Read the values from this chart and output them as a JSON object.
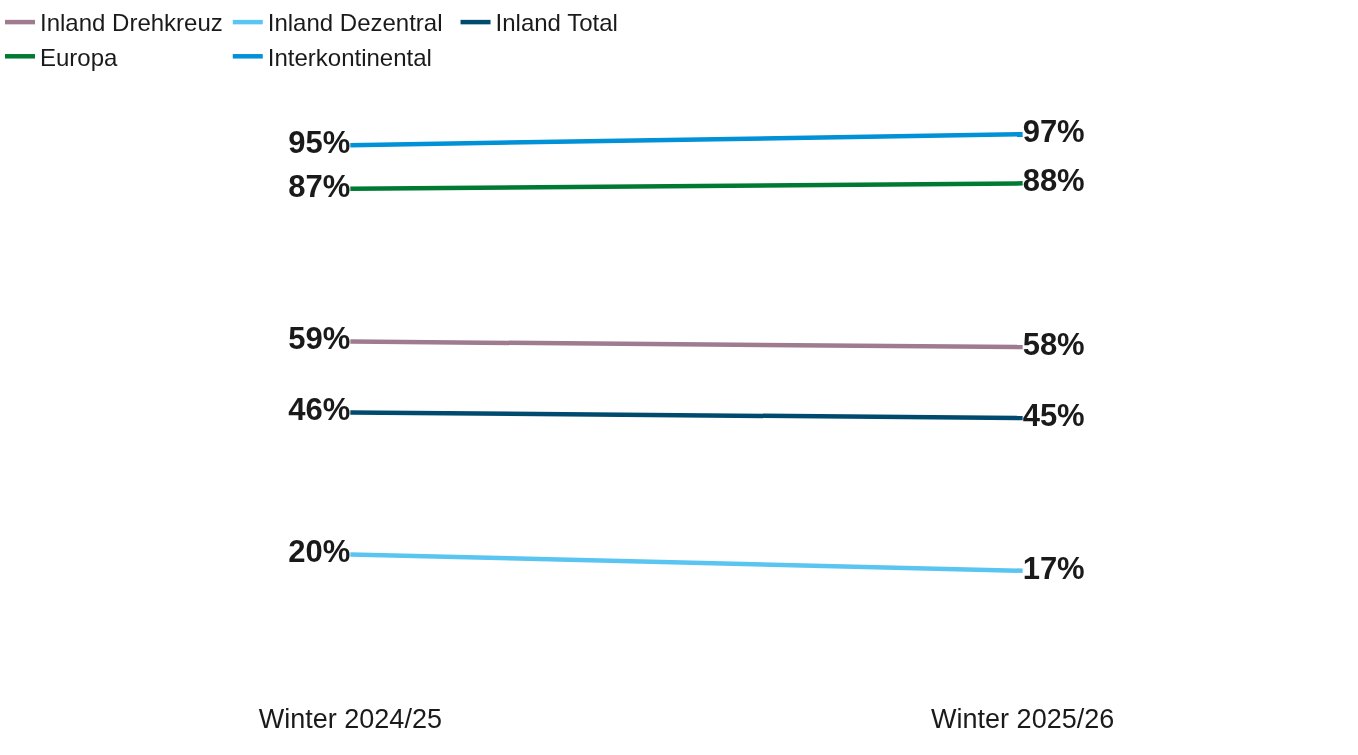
{
  "chart_data": {
    "type": "line",
    "categories": [
      "Winter 2024/25",
      "Winter 2025/26"
    ],
    "series": [
      {
        "name": "Inland Drehkreuz",
        "color": "#9e7b8f",
        "values": [
          59,
          58
        ],
        "value_labels": [
          "59%",
          "58%"
        ]
      },
      {
        "name": "Inland Dezentral",
        "color": "#5bc5f2",
        "values": [
          20,
          17
        ],
        "value_labels": [
          "20%",
          "17%"
        ]
      },
      {
        "name": "Inland Total",
        "color": "#004a6e",
        "values": [
          46,
          45
        ],
        "value_labels": [
          "46%",
          "45%"
        ]
      },
      {
        "name": "Europa",
        "color": "#007a33",
        "values": [
          87,
          88
        ],
        "value_labels": [
          "87%",
          "88%"
        ]
      },
      {
        "name": "Interkontinental",
        "color": "#0091d6",
        "values": [
          95,
          97
        ],
        "value_labels": [
          "95%",
          "97%"
        ]
      }
    ],
    "grid": false,
    "legend": "top",
    "marker": "none",
    "line_style": "solid"
  }
}
